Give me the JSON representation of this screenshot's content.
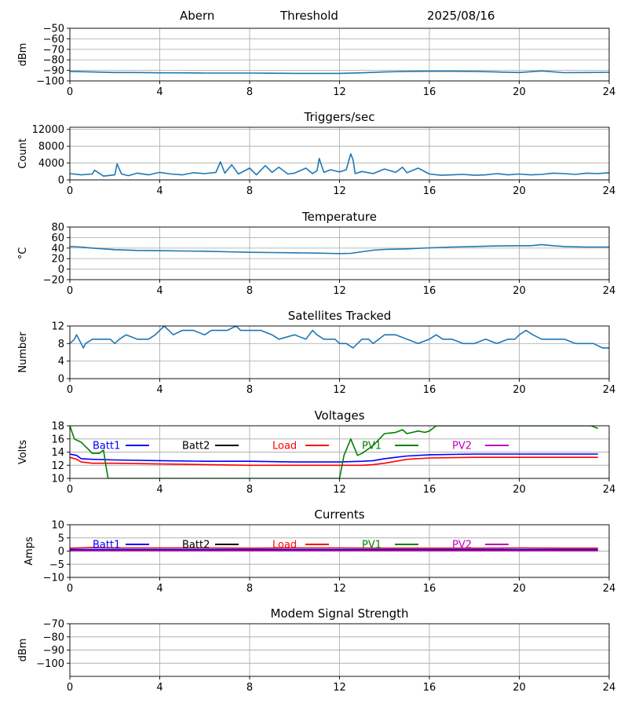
{
  "header": {
    "site": "Abern",
    "mode": "Threshold",
    "date": "2025/08/16"
  },
  "colors": {
    "trace": "#1f77b4",
    "grid": "#b0b0b0",
    "batt1": "#0000ff",
    "batt2": "#000000",
    "load": "#ff0000",
    "pv1": "#008000",
    "pv2": "#bf00bf"
  },
  "chart_data": [
    {
      "type": "line",
      "title": "",
      "xlabel": "",
      "ylabel": "dBm",
      "xlim": [
        0,
        24
      ],
      "ylim": [
        -100,
        -50
      ],
      "grid": true,
      "xticks": [
        0,
        4,
        8,
        12,
        16,
        20,
        24
      ],
      "yticks": [
        -100,
        -90,
        -80,
        -70,
        -60,
        -50
      ],
      "series": [
        {
          "name": "",
          "color": "#1f77b4",
          "x": [
            0,
            1,
            2,
            3,
            4,
            5,
            6,
            7,
            8,
            9,
            10,
            11,
            12,
            13,
            14,
            15,
            16,
            17,
            18,
            19,
            20,
            21,
            22,
            23,
            24
          ],
          "y": [
            -91,
            -91.5,
            -92,
            -92,
            -92.3,
            -92.3,
            -92.5,
            -92.5,
            -92.5,
            -92.7,
            -92.8,
            -92.8,
            -92.8,
            -92.3,
            -91.5,
            -91,
            -90.8,
            -90.8,
            -91,
            -91.5,
            -92,
            -90.5,
            -92.2,
            -92,
            -91.8
          ]
        }
      ]
    },
    {
      "type": "line",
      "title": "Triggers/sec",
      "xlabel": "",
      "ylabel": "Count",
      "xlim": [
        0,
        24
      ],
      "ylim": [
        0,
        12500
      ],
      "grid": true,
      "xticks": [
        0,
        4,
        8,
        12,
        16,
        20,
        24
      ],
      "yticks": [
        0,
        4000,
        8000,
        12000
      ],
      "series": [
        {
          "name": "",
          "color": "#1f77b4",
          "x": [
            0,
            0.5,
            1,
            1.1,
            1.5,
            2,
            2.1,
            2.3,
            2.6,
            3,
            3.5,
            4,
            4.5,
            5,
            5.5,
            6,
            6.5,
            6.7,
            6.9,
            7.2,
            7.5,
            8,
            8.3,
            8.7,
            9,
            9.3,
            9.7,
            10,
            10.5,
            10.8,
            11,
            11.1,
            11.3,
            11.6,
            12,
            12.3,
            12.5,
            12.6,
            12.7,
            13,
            13.5,
            14,
            14.5,
            14.8,
            15,
            15.5,
            16,
            16.5,
            17,
            17.5,
            18,
            18.5,
            19,
            19.5,
            20,
            20.5,
            21,
            21.5,
            22,
            22.5,
            23,
            23.5,
            24
          ],
          "y": [
            1500,
            1200,
            1400,
            2300,
            900,
            1200,
            3800,
            1400,
            1000,
            1600,
            1200,
            1800,
            1400,
            1200,
            1700,
            1500,
            1800,
            4300,
            1600,
            3600,
            1400,
            2800,
            1200,
            3400,
            1800,
            3000,
            1400,
            1600,
            2800,
            1500,
            2200,
            5100,
            1800,
            2400,
            1900,
            2400,
            6200,
            4800,
            1500,
            2000,
            1500,
            2600,
            1800,
            3000,
            1700,
            2800,
            1400,
            1100,
            1200,
            1300,
            1100,
            1200,
            1500,
            1200,
            1400,
            1200,
            1300,
            1600,
            1500,
            1300,
            1600,
            1500,
            1700
          ]
        }
      ]
    },
    {
      "type": "line",
      "title": "Temperature",
      "xlabel": "",
      "ylabel": "°C",
      "xlim": [
        0,
        24
      ],
      "ylim": [
        -20,
        80
      ],
      "grid": true,
      "xticks": [
        0,
        4,
        8,
        12,
        16,
        20,
        24
      ],
      "yticks": [
        -20,
        0,
        20,
        40,
        60,
        80
      ],
      "series": [
        {
          "name": "",
          "color": "#1f77b4",
          "x": [
            0,
            0.5,
            1,
            2,
            3,
            4,
            5,
            6,
            7,
            8,
            9,
            10,
            11,
            11.5,
            12,
            12.5,
            13,
            13.5,
            14,
            15,
            16,
            17,
            18,
            19,
            20,
            20.5,
            21,
            21.5,
            22,
            23,
            24
          ],
          "y": [
            43,
            42,
            40,
            37,
            35.5,
            35,
            34.5,
            34,
            33,
            32,
            31.5,
            31,
            30.5,
            30,
            29.5,
            30,
            33,
            36,
            37.5,
            38.5,
            40.5,
            42,
            43,
            44,
            44.5,
            44.5,
            46.5,
            44.5,
            43,
            42,
            42
          ]
        }
      ]
    },
    {
      "type": "line",
      "title": "Satellites Tracked",
      "xlabel": "",
      "ylabel": "Number",
      "xlim": [
        0,
        24
      ],
      "ylim": [
        0,
        12
      ],
      "grid": true,
      "xticks": [
        0,
        4,
        8,
        12,
        16,
        20,
        24
      ],
      "yticks": [
        0,
        4,
        8,
        12
      ],
      "series": [
        {
          "name": "",
          "color": "#1f77b4",
          "x": [
            0,
            0.2,
            0.3,
            0.4,
            0.5,
            0.6,
            0.7,
            1,
            1.5,
            1.8,
            2,
            2.2,
            2.5,
            3,
            3.5,
            3.8,
            4,
            4.2,
            4.4,
            4.6,
            5,
            5.5,
            6,
            6.3,
            6.6,
            7,
            7.4,
            7.6,
            8,
            8.5,
            9,
            9.3,
            10,
            10.5,
            10.8,
            11,
            11.3,
            11.8,
            12,
            12.3,
            12.6,
            13,
            13.3,
            13.5,
            14,
            14.5,
            15,
            15.5,
            16,
            16.3,
            16.6,
            17,
            17.5,
            18,
            18.5,
            19,
            19.5,
            19.8,
            20,
            20.3,
            20.6,
            21,
            21.5,
            22,
            22.5,
            23,
            23.3,
            23.7,
            24
          ],
          "y": [
            8,
            9,
            10,
            9,
            8,
            7,
            8,
            9,
            9,
            9,
            8,
            9,
            10,
            9,
            9,
            10,
            11,
            12,
            11,
            10,
            11,
            11,
            10,
            11,
            11,
            11,
            12,
            11,
            11,
            11,
            10,
            9,
            10,
            9,
            11,
            10,
            9,
            9,
            8,
            8,
            7,
            9,
            9,
            8,
            10,
            10,
            9,
            8,
            9,
            10,
            9,
            9,
            8,
            8,
            9,
            8,
            9,
            9,
            10,
            11,
            10,
            9,
            9,
            9,
            8,
            8,
            8,
            7,
            7
          ]
        }
      ]
    },
    {
      "type": "line",
      "title": "Voltages",
      "xlabel": "",
      "ylabel": "Volts",
      "xlim": [
        0,
        24
      ],
      "ylim": [
        10,
        18
      ],
      "grid": true,
      "xticks": [
        0,
        4,
        8,
        12,
        16,
        20,
        24
      ],
      "yticks": [
        10,
        12,
        14,
        16,
        18
      ],
      "legend": "top, inline",
      "series": [
        {
          "name": "Batt1",
          "color": "#0000ff",
          "x": [
            0,
            0.3,
            0.5,
            1,
            2,
            4,
            6,
            8,
            10,
            11,
            12,
            13,
            13.5,
            14,
            14.5,
            15,
            16,
            18,
            20,
            22,
            23.5
          ],
          "y": [
            13.7,
            13.5,
            13.0,
            12.9,
            12.8,
            12.7,
            12.6,
            12.6,
            12.5,
            12.5,
            12.5,
            12.6,
            12.7,
            13.0,
            13.2,
            13.4,
            13.6,
            13.7,
            13.7,
            13.7,
            13.7
          ]
        },
        {
          "name": "Batt2",
          "color": "#000000",
          "x": [],
          "y": []
        },
        {
          "name": "Load",
          "color": "#ff0000",
          "x": [
            0,
            0.3,
            0.5,
            1,
            2,
            4,
            6,
            8,
            10,
            11,
            12,
            13,
            13.5,
            14,
            14.5,
            15,
            16,
            18,
            20,
            22,
            23.5
          ],
          "y": [
            13.2,
            12.9,
            12.5,
            12.3,
            12.3,
            12.2,
            12.1,
            12.0,
            12.0,
            12.0,
            12.0,
            12.0,
            12.1,
            12.3,
            12.6,
            12.9,
            13.1,
            13.2,
            13.2,
            13.2,
            13.2
          ]
        },
        {
          "name": "PV1",
          "color": "#008000",
          "x": [
            0,
            0.2,
            0.5,
            0.8,
            1,
            1.3,
            1.5,
            1.6,
            1.7,
            12,
            12.2,
            12.5,
            12.8,
            13,
            13.5,
            14,
            14.5,
            14.8,
            15,
            15.5,
            15.8,
            16,
            16.3,
            23.2,
            23.5
          ],
          "y": [
            18.0,
            16.0,
            15.5,
            14.5,
            13.8,
            13.8,
            14.3,
            12.0,
            10.0,
            10.0,
            13.5,
            16.0,
            13.5,
            13.8,
            15.0,
            16.8,
            17.0,
            17.4,
            16.8,
            17.2,
            17.0,
            17.2,
            18.0,
            18.0,
            17.6
          ]
        },
        {
          "name": "PV2",
          "color": "#bf00bf",
          "x": [],
          "y": []
        }
      ]
    },
    {
      "type": "line",
      "title": "Currents",
      "xlabel": "",
      "ylabel": "Amps",
      "xlim": [
        0,
        24
      ],
      "ylim": [
        -10,
        10
      ],
      "grid": true,
      "xticks": [
        0,
        4,
        8,
        12,
        16,
        20,
        24
      ],
      "yticks": [
        -10,
        -5,
        0,
        5,
        10
      ],
      "legend": "top, inline",
      "series": [
        {
          "name": "Batt1",
          "color": "#0000ff",
          "x": [
            0,
            6,
            12,
            18,
            23.5
          ],
          "y": [
            0.6,
            0.6,
            0.6,
            0.6,
            0.6
          ]
        },
        {
          "name": "Batt2",
          "color": "#000000",
          "x": [],
          "y": []
        },
        {
          "name": "Load",
          "color": "#ff0000",
          "x": [
            0,
            1,
            2,
            4,
            6,
            8,
            10,
            12,
            14,
            16,
            18,
            20,
            22,
            23.5
          ],
          "y": [
            1.1,
            1.3,
            1.2,
            1.2,
            1.2,
            1.1,
            1.2,
            1.2,
            1.1,
            1.1,
            1.1,
            1.2,
            1.1,
            1.1
          ]
        },
        {
          "name": "PV1",
          "color": "#008000",
          "x": [
            0,
            6,
            12,
            18,
            23.5
          ],
          "y": [
            0.2,
            0.2,
            0.2,
            0.2,
            0.2
          ]
        },
        {
          "name": "PV2",
          "color": "#bf00bf",
          "x": [
            0,
            6,
            12,
            18,
            23.5
          ],
          "y": [
            0.1,
            0.1,
            0.1,
            0.1,
            0.1
          ]
        }
      ]
    },
    {
      "type": "line",
      "title": "Modem Signal Strength",
      "xlabel": "",
      "ylabel": "dBm",
      "xlim": [
        0,
        24
      ],
      "ylim": [
        -110,
        -70
      ],
      "grid": true,
      "xticks": [
        0,
        4,
        8,
        12,
        16,
        20,
        24
      ],
      "yticks": [
        -100,
        -90,
        -80,
        -70
      ],
      "series": []
    }
  ]
}
